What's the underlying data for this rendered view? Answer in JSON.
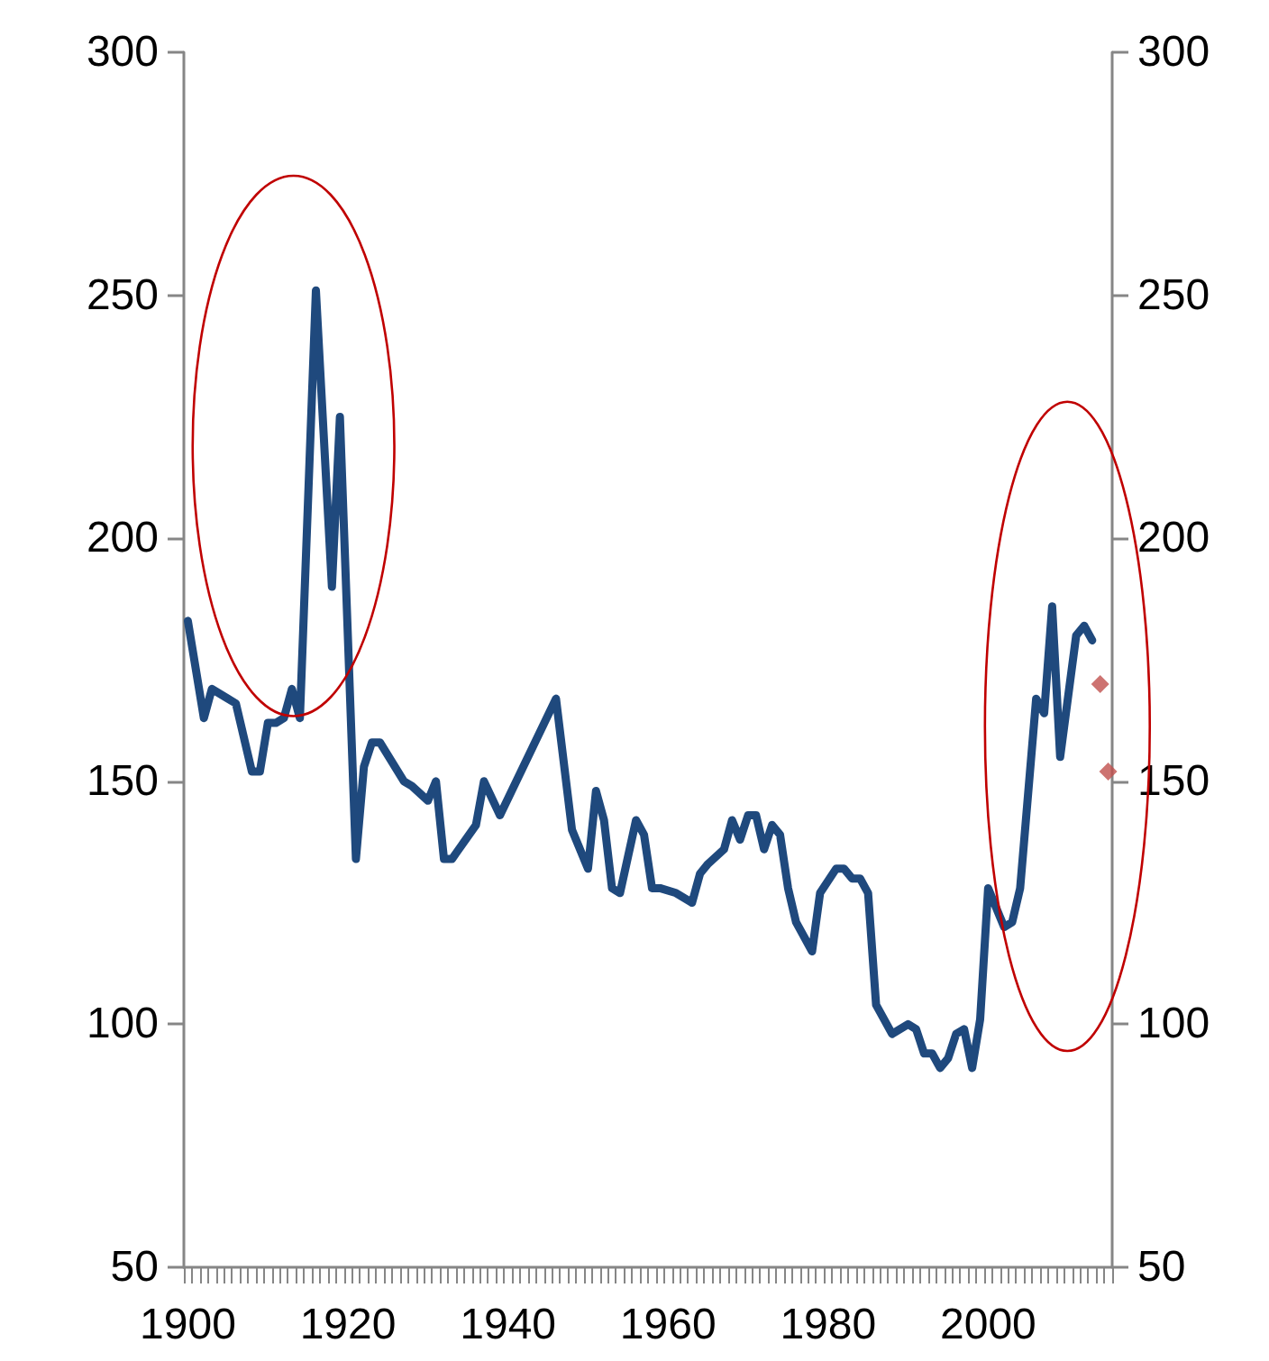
{
  "chart_data": {
    "type": "line",
    "x": [
      1900,
      1902,
      1903,
      1905,
      1906,
      1908,
      1909,
      1910,
      1911,
      1912,
      1913,
      1914,
      1916,
      1918,
      1919,
      1921,
      1922,
      1923,
      1924,
      1927,
      1928,
      1930,
      1931,
      1932,
      1933,
      1936,
      1937,
      1939,
      1946,
      1948,
      1950,
      1951,
      1952,
      1953,
      1954,
      1956,
      1957,
      1958,
      1959,
      1961,
      1963,
      1964,
      1965,
      1967,
      1968,
      1969,
      1970,
      1971,
      1972,
      1973,
      1974,
      1975,
      1976,
      1978,
      1979,
      1981,
      1982,
      1983,
      1984,
      1985,
      1986,
      1988,
      1990,
      1991,
      1992,
      1993,
      1994,
      1995,
      1996,
      1997,
      1998,
      1999,
      2000,
      2002,
      2003,
      2004,
      2006,
      2007,
      2008,
      2009,
      2011,
      2012,
      2013,
      2014,
      2015
    ],
    "series": [
      {
        "color": "#1f497d",
        "marker": "none",
        "line_style": "solid",
        "values": [
          183,
          163,
          169,
          167,
          166,
          152,
          152,
          162,
          162,
          163,
          169,
          163,
          251,
          190,
          225,
          134,
          153,
          158,
          158,
          150,
          149,
          146,
          150,
          134,
          134,
          141,
          150,
          143,
          167,
          140,
          132,
          148,
          142,
          128,
          127,
          142,
          139,
          128,
          128,
          127,
          125,
          131,
          133,
          136,
          142,
          138,
          143,
          143,
          136,
          141,
          139,
          128,
          121,
          115,
          127,
          132,
          132,
          130,
          130,
          127,
          104,
          98,
          100,
          99,
          94,
          94,
          91,
          93,
          98,
          99,
          91,
          101,
          128,
          120,
          121,
          128,
          167,
          164,
          186,
          155,
          180,
          182,
          179,
          null,
          null
        ]
      },
      {
        "type": "scatter",
        "color": "#c0504d",
        "marker": "diamond",
        "values": [
          null,
          null,
          null,
          null,
          null,
          null,
          null,
          null,
          null,
          null,
          null,
          null,
          null,
          null,
          null,
          null,
          null,
          null,
          null,
          null,
          null,
          null,
          null,
          null,
          null,
          null,
          null,
          null,
          null,
          null,
          null,
          null,
          null,
          null,
          null,
          null,
          null,
          null,
          null,
          null,
          null,
          null,
          null,
          null,
          null,
          null,
          null,
          null,
          null,
          null,
          null,
          null,
          null,
          null,
          null,
          null,
          null,
          null,
          null,
          null,
          null,
          null,
          null,
          null,
          null,
          null,
          null,
          null,
          null,
          null,
          null,
          null,
          null,
          null,
          null,
          null,
          null,
          null,
          null,
          null,
          null,
          null,
          null,
          170,
          152
        ]
      }
    ],
    "xlim": [
      1899.5,
      2015.5
    ],
    "xticks": [
      1900,
      1920,
      1940,
      1960,
      1980,
      2000
    ],
    "ylim": [
      50,
      300
    ],
    "yticks": [
      50,
      100,
      150,
      200,
      250,
      300
    ],
    "y2lim": [
      50,
      300
    ],
    "y2ticks": [
      50,
      100,
      150,
      200,
      250,
      300
    ],
    "grid": false
  }
}
